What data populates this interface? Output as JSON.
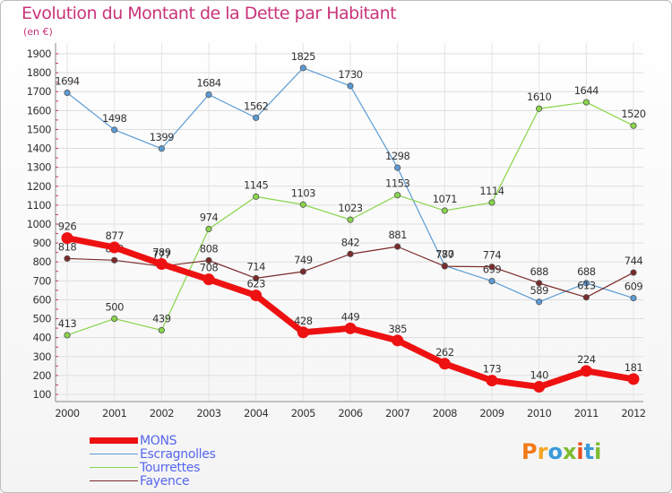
{
  "title": "Evolution du Montant de la Dette par Habitant",
  "subtitle": "(en €)",
  "logo": {
    "letters": [
      "P",
      "r",
      "o",
      "x",
      "i",
      "t",
      "i"
    ],
    "colors": [
      "#f07a1a",
      "#f5a623",
      "#3a9ad9",
      "#7dbb2e",
      "#e84e1b",
      "#3a9ad9",
      "#7dbb2e"
    ]
  },
  "chart_data": {
    "type": "line",
    "x": [
      "2000",
      "2001",
      "2002",
      "2003",
      "2004",
      "2005",
      "2006",
      "2007",
      "2008",
      "2009",
      "2010",
      "2011",
      "2012"
    ],
    "ylim": [
      100,
      1900
    ],
    "yticks": [
      100,
      200,
      300,
      400,
      500,
      600,
      700,
      800,
      900,
      1000,
      1100,
      1200,
      1300,
      1400,
      1500,
      1600,
      1700,
      1800,
      1900
    ],
    "grid": true,
    "legend": "bottom-left",
    "series": [
      {
        "name": "Escragnolles",
        "color": "#5b9bd5",
        "values": [
          1694,
          1498,
          1399,
          1684,
          1562,
          1825,
          1730,
          1298,
          780,
          699,
          589,
          688,
          609
        ]
      },
      {
        "name": "Tourrettes",
        "color": "#88d44a",
        "values": [
          413,
          500,
          439,
          974,
          1145,
          1103,
          1023,
          1153,
          1071,
          1114,
          1610,
          1644,
          1520
        ]
      },
      {
        "name": "Fayence",
        "color": "#7b2a2a",
        "values": [
          818,
          809,
          777,
          808,
          714,
          749,
          842,
          881,
          777,
          774,
          688,
          613,
          744
        ]
      },
      {
        "name": "MONS",
        "color": "#ee1111",
        "values": [
          926,
          877,
          789,
          708,
          623,
          428,
          449,
          385,
          262,
          173,
          140,
          224,
          181
        ]
      }
    ],
    "legend_order": [
      "MONS",
      "Escragnolles",
      "Tourrettes",
      "Fayence"
    ]
  }
}
